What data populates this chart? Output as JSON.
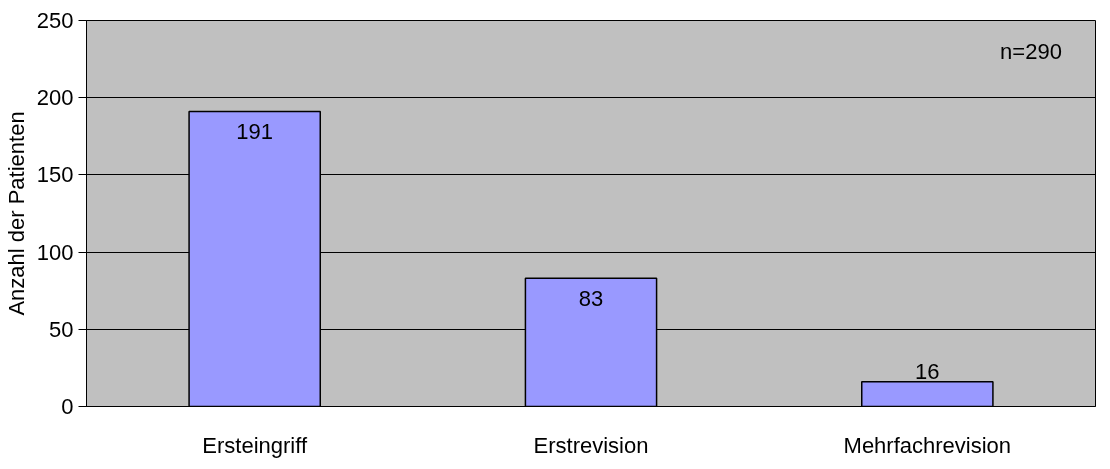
{
  "chart_data": {
    "type": "bar",
    "ylabel": "Anzahl der Patienten",
    "categories": [
      "Ersteingriff",
      "Erstrevision",
      "Mehrfachrevision"
    ],
    "values": [
      191,
      83,
      16
    ],
    "color": "#9999ff",
    "ylim": [
      0,
      250
    ],
    "yticks": [
      0,
      50,
      100,
      150,
      200,
      250
    ],
    "grid": "y",
    "data_labels": true,
    "annotations": [
      "n=290"
    ]
  }
}
